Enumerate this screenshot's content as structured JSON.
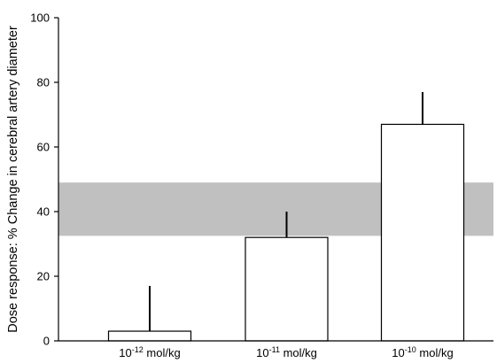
{
  "chart_data": {
    "type": "bar",
    "title": "",
    "xlabel": "",
    "ylabel": "Dose response: % Change in cerebral artery diameter",
    "ylim": [
      0,
      100
    ],
    "yticks": [
      0,
      20,
      40,
      60,
      80,
      100
    ],
    "categories": [
      {
        "base": "10",
        "exp": "-12",
        "unit": " mol/kg"
      },
      {
        "base": "10",
        "exp": "-11",
        "unit": " mol/kg"
      },
      {
        "base": "10",
        "exp": "-10",
        "unit": " mol/kg"
      }
    ],
    "series": [
      {
        "values": [
          3,
          32,
          67
        ],
        "error_upper": [
          14,
          8,
          10
        ]
      }
    ],
    "reference_band": {
      "from": 32.5,
      "to": 49
    },
    "colors": {
      "bar_fill": "#ffffff",
      "bar_stroke": "#000000",
      "band": "#c0c0c0",
      "axis": "#000000"
    },
    "grid": false,
    "legend": "none"
  }
}
